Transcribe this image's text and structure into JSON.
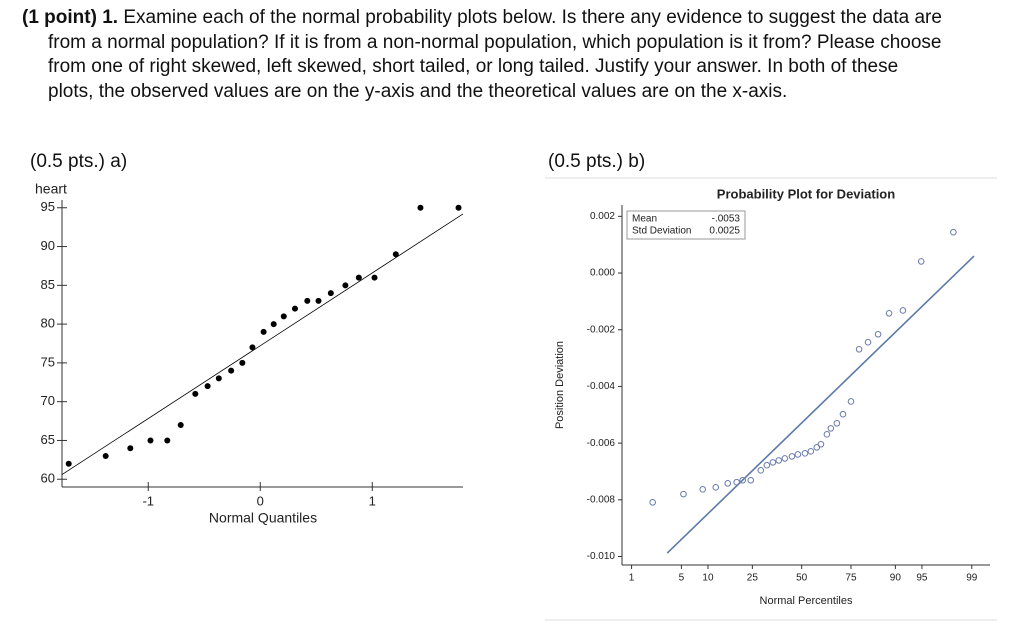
{
  "question": {
    "label": "(1 point)",
    "number": "1.",
    "text": "Examine each of the normal probability plots below. Is there any evidence to suggest the data are from a normal population? If it is from a non-normal population, which population is it from? Please choose from one of right skewed, left skewed, short tailed, or long tailed. Justify your answer. In both of these plots, the observed values are on the y-axis and the theoretical values are on the x-axis."
  },
  "parts": [
    "(0.5 pts.) a)",
    "(0.5 pts.) b)"
  ],
  "chart_data": [
    {
      "type": "scatter",
      "y_axis_label": "heart",
      "x_axis_label": "Normal Quantiles",
      "marker": "filled",
      "color": "#000000",
      "line_color": "#000000",
      "x": [
        -1.71,
        -1.38,
        -1.16,
        -0.98,
        -0.83,
        -0.71,
        -0.58,
        -0.47,
        -0.37,
        -0.26,
        -0.16,
        -0.07,
        0.03,
        0.12,
        0.21,
        0.31,
        0.42,
        0.52,
        0.63,
        0.76,
        0.88,
        1.02,
        1.21,
        1.43,
        1.77
      ],
      "values": [
        62,
        63,
        64,
        65,
        65,
        67,
        71,
        72,
        73,
        74,
        75,
        77,
        79,
        80,
        81,
        82,
        83,
        83,
        84,
        85,
        86,
        86,
        89,
        95,
        95
      ],
      "reference_line": {
        "x": [
          -1.77,
          1.81
        ],
        "y": [
          60.6,
          94.2
        ]
      },
      "xlim": [
        -1.77,
        1.81
      ],
      "ylim": [
        59,
        96
      ],
      "xticks": [
        -1,
        0,
        1
      ],
      "yticks": [
        60,
        65,
        70,
        75,
        80,
        85,
        90,
        95
      ]
    },
    {
      "type": "scatter",
      "title": "Probability Plot for Deviation",
      "y_axis_label": "Position Deviation",
      "x_axis_label": "Normal Percentiles",
      "xscale": "probit",
      "marker": "open",
      "color": "#6a7bab",
      "line_color": "#5b7aa8",
      "x": [
        2.08,
        5.3,
        8.8,
        12.0,
        15.6,
        18.7,
        21.0,
        24.3,
        28.8,
        31.7,
        34.7,
        37.7,
        40.9,
        44.7,
        47.9,
        51.8,
        55.0,
        58.2,
        60.4,
        63.5,
        65.5,
        68.5,
        71.4,
        75.0,
        78.4,
        81.8,
        85.2,
        88.4,
        91.7,
        94.9,
        98.1
      ],
      "values": [
        -0.00809,
        -0.0078,
        -0.00763,
        -0.00756,
        -0.00742,
        -0.00738,
        -0.00731,
        -0.00731,
        -0.00696,
        -0.00678,
        -0.00668,
        -0.00661,
        -0.00654,
        -0.00647,
        -0.0064,
        -0.00636,
        -0.00629,
        -0.00615,
        -0.00604,
        -0.00569,
        -0.00548,
        -0.0053,
        -0.00498,
        -0.00453,
        -0.00269,
        -0.00244,
        -0.00216,
        -0.00142,
        -0.00132,
        0.00041,
        0.00144
      ],
      "reference_line": {
        "x": [
          3.3,
          99.08
        ],
        "y": [
          -0.00988,
          0.0006
        ]
      },
      "inset": [
        [
          "Mean",
          "-.0053"
        ],
        [
          "Std Deviation",
          "0.0025"
        ]
      ],
      "xlim": [
        0.7,
        99.5
      ],
      "ylim": [
        -0.0103,
        0.0024
      ],
      "xticks": [
        1,
        5,
        10,
        25,
        50,
        75,
        90,
        95,
        99
      ],
      "yticks": [
        0.002,
        {
          "value": 0,
          "label": "0.000"
        },
        -0.002,
        -0.004,
        -0.006,
        -0.008,
        {
          "value": -0.01,
          "label": "-0.010"
        }
      ]
    }
  ]
}
